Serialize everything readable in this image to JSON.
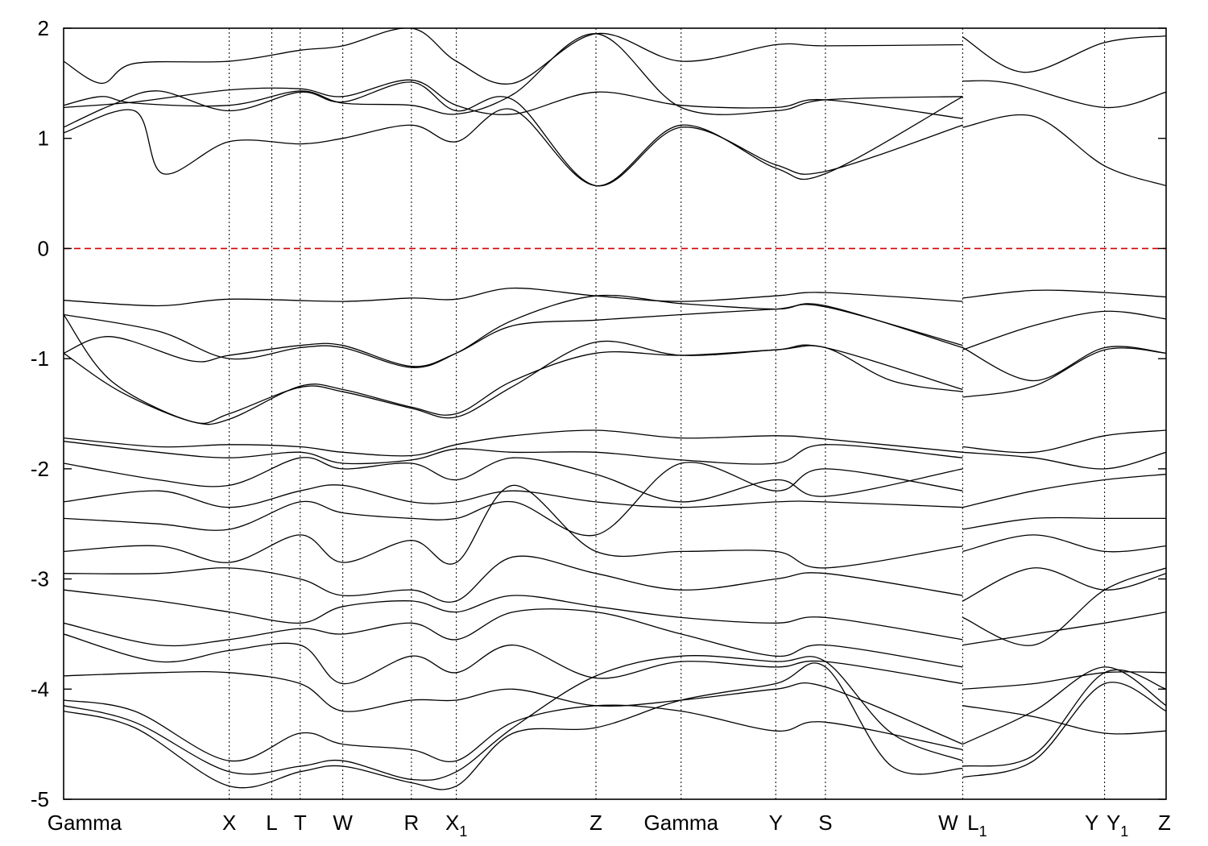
{
  "chart_data": {
    "type": "line",
    "title": "",
    "xlabel": "",
    "ylabel": "",
    "ylim": [
      -5,
      2
    ],
    "yticks": [
      "2",
      "1",
      "0",
      "-1",
      "-2",
      "-3",
      "-4",
      "-5"
    ],
    "ytick_values": [
      2,
      1,
      0,
      -1,
      -2,
      -3,
      -4,
      -5
    ],
    "xlim": [
      0,
      23.3
    ],
    "kpoints": [
      {
        "label": "Gamma",
        "sub": "",
        "x": 0.0
      },
      {
        "label": "X",
        "sub": "",
        "x": 3.5
      },
      {
        "label": "L",
        "sub": "",
        "x": 4.4
      },
      {
        "label": "T",
        "sub": "",
        "x": 5.0
      },
      {
        "label": "W",
        "sub": "",
        "x": 5.9
      },
      {
        "label": "R",
        "sub": "",
        "x": 7.35
      },
      {
        "label": "X",
        "sub": "1",
        "x": 8.3
      },
      {
        "label": "Z",
        "sub": "",
        "x": 11.25
      },
      {
        "label": "Gamma",
        "sub": "",
        "x": 13.05
      },
      {
        "label": "Y",
        "sub": "",
        "x": 15.05
      },
      {
        "label": "S",
        "sub": "",
        "x": 16.1
      },
      {
        "label": "W",
        "sub": "",
        "x": 19.0
      },
      {
        "label": "L",
        "sub": "1",
        "x": 19.0
      },
      {
        "label": "Y",
        "sub": "",
        "x": 22.0
      },
      {
        "label": "Y",
        "sub": "1",
        "x": 22.0
      },
      {
        "label": "Z",
        "sub": "",
        "x": 23.3
      }
    ],
    "fermi_level": 0,
    "grid": "vertical dotted lines at k-points",
    "series": [
      {
        "x": [
          0,
          1.5,
          2.1,
          3.5,
          5.0,
          5.9,
          7.35,
          8.3,
          9.5,
          11.25,
          13.05,
          15.05,
          16.1,
          19.0
        ],
        "values": [
          1.05,
          1.25,
          0.68,
          0.97,
          0.95,
          1.0,
          1.12,
          0.97,
          1.26,
          0.57,
          1.12,
          0.73,
          0.68,
          1.38
        ]
      },
      {
        "x": [
          0,
          1.0,
          2.0,
          3.5,
          5.0,
          5.9,
          7.35,
          8.3,
          9.5,
          11.25,
          13.05,
          15.05,
          16.1,
          19.0
        ],
        "values": [
          1.1,
          1.3,
          1.43,
          1.25,
          1.42,
          1.33,
          1.51,
          1.25,
          1.35,
          0.57,
          1.1,
          0.76,
          0.7,
          1.12
        ]
      },
      {
        "x": [
          0,
          1.5,
          3.5,
          5.0,
          5.9,
          7.35,
          8.3,
          9.5,
          11.25,
          13.05,
          15.05,
          16.1,
          19.0
        ],
        "values": [
          1.28,
          1.33,
          1.44,
          1.45,
          1.38,
          1.53,
          1.3,
          1.22,
          1.42,
          1.3,
          1.28,
          1.35,
          1.18
        ]
      },
      {
        "x": [
          0,
          0.8,
          1.5,
          3.5,
          5.0,
          5.9,
          7.35,
          8.3,
          9.5,
          11.25,
          13.05,
          15.05,
          16.1,
          19.0
        ],
        "values": [
          1.7,
          1.5,
          1.68,
          1.7,
          1.8,
          1.84,
          2.0,
          1.7,
          1.5,
          1.95,
          1.7,
          1.85,
          1.84,
          1.85
        ]
      },
      {
        "x": [
          0,
          0.8,
          1.5,
          3.5,
          5.0,
          5.9,
          7.35,
          8.3,
          9.5,
          11.25,
          13.05,
          15.05,
          16.1,
          19.0
        ],
        "values": [
          1.3,
          1.38,
          1.32,
          1.3,
          1.43,
          1.32,
          1.3,
          1.22,
          1.4,
          1.95,
          1.28,
          1.25,
          1.35,
          1.38
        ]
      },
      {
        "x": [
          19.0,
          20.5,
          22.0,
          23.3
        ],
        "values": [
          1.1,
          1.2,
          0.75,
          0.57
        ]
      },
      {
        "x": [
          19.0,
          20.0,
          22.0,
          23.3
        ],
        "values": [
          1.52,
          1.5,
          1.28,
          1.42
        ]
      },
      {
        "x": [
          19.0,
          20.3,
          22.0,
          23.3
        ],
        "values": [
          1.92,
          1.6,
          1.87,
          1.93
        ]
      },
      {
        "x": [
          0,
          2.0,
          3.5,
          5.9,
          7.35,
          8.3,
          9.5,
          11.25,
          13.05,
          15.05,
          16.1,
          19.0
        ],
        "values": [
          -0.47,
          -0.52,
          -0.46,
          -0.48,
          -0.45,
          -0.46,
          -0.36,
          -0.43,
          -0.48,
          -0.43,
          -0.4,
          -0.48
        ]
      },
      {
        "x": [
          0,
          2.0,
          3.5,
          5.0,
          5.9,
          7.35,
          8.3,
          9.5,
          11.25,
          13.05,
          15.05,
          16.1,
          19.0
        ],
        "values": [
          -0.6,
          -0.75,
          -1.0,
          -0.9,
          -0.9,
          -1.08,
          -0.95,
          -0.65,
          -0.43,
          -0.5,
          -0.55,
          -0.52,
          -0.9
        ]
      },
      {
        "x": [
          0,
          1.0,
          2.7,
          3.5,
          5.0,
          5.9,
          7.35,
          8.3,
          9.5,
          11.25,
          13.05,
          15.05,
          16.1,
          19.0
        ],
        "values": [
          -0.95,
          -0.8,
          -1.02,
          -0.97,
          -0.88,
          -0.88,
          -1.07,
          -0.95,
          -0.7,
          -0.65,
          -0.6,
          -0.55,
          -0.53,
          -0.88
        ]
      },
      {
        "x": [
          0,
          1.2,
          2.7,
          3.5,
          5.0,
          5.9,
          7.35,
          8.3,
          9.5,
          11.25,
          13.05,
          15.05,
          16.1,
          19.0
        ],
        "values": [
          -0.95,
          -1.3,
          -1.57,
          -1.55,
          -1.25,
          -1.28,
          -1.44,
          -1.5,
          -1.2,
          -0.95,
          -0.97,
          -0.92,
          -0.9,
          -1.28
        ]
      },
      {
        "x": [
          0,
          1.0,
          2.7,
          3.5,
          5.0,
          5.9,
          7.35,
          8.3,
          9.5,
          11.25,
          13.05,
          15.05,
          16.1,
          17.5,
          19.0
        ],
        "values": [
          -0.6,
          -1.2,
          -1.57,
          -1.5,
          -1.26,
          -1.3,
          -1.45,
          -1.53,
          -1.25,
          -0.85,
          -0.97,
          -0.92,
          -0.9,
          -1.2,
          -1.3
        ]
      },
      {
        "x": [
          19.0,
          20.5,
          22.0,
          23.3
        ],
        "values": [
          -0.45,
          -0.38,
          -0.4,
          -0.44
        ]
      },
      {
        "x": [
          19.0,
          20.5,
          22.0,
          23.3
        ],
        "values": [
          -0.92,
          -0.7,
          -0.57,
          -0.64
        ]
      },
      {
        "x": [
          19.0,
          20.5,
          22.0,
          23.3
        ],
        "values": [
          -0.9,
          -1.2,
          -0.9,
          -0.95
        ]
      },
      {
        "x": [
          19.0,
          20.5,
          22.0,
          23.3
        ],
        "values": [
          -1.35,
          -1.25,
          -0.92,
          -0.95
        ]
      },
      {
        "x": [
          0,
          2.0,
          3.5,
          5.0,
          5.9,
          7.35,
          8.3,
          9.5,
          11.25,
          13.05,
          15.05,
          16.1,
          19.0
        ],
        "values": [
          -1.72,
          -1.8,
          -1.78,
          -1.8,
          -1.85,
          -1.88,
          -1.78,
          -1.7,
          -1.65,
          -1.72,
          -1.7,
          -1.73,
          -1.85
        ]
      },
      {
        "x": [
          0,
          2.0,
          3.5,
          5.0,
          5.9,
          7.35,
          8.3,
          9.5,
          11.25,
          13.05,
          15.05,
          16.1,
          19.0
        ],
        "values": [
          -1.75,
          -1.85,
          -1.9,
          -1.85,
          -1.95,
          -1.92,
          -1.82,
          -1.85,
          -1.85,
          -1.92,
          -1.95,
          -1.78,
          -1.9
        ]
      },
      {
        "x": [
          0,
          2.0,
          3.5,
          5.0,
          5.9,
          7.35,
          8.3,
          9.5,
          11.25,
          13.05,
          15.05,
          16.1,
          19.0
        ],
        "values": [
          -1.95,
          -2.1,
          -2.15,
          -1.9,
          -2.0,
          -1.95,
          -2.1,
          -1.9,
          -2.05,
          -2.3,
          -2.1,
          -2.25,
          -2.0
        ]
      },
      {
        "x": [
          0,
          2.0,
          3.5,
          5.0,
          5.9,
          7.35,
          8.3,
          9.5,
          11.25,
          13.05,
          15.05,
          16.1,
          19.0
        ],
        "values": [
          -2.3,
          -2.2,
          -2.35,
          -2.2,
          -2.15,
          -2.3,
          -2.3,
          -2.2,
          -2.3,
          -2.35,
          -2.3,
          -2.3,
          -2.35
        ]
      },
      {
        "x": [
          0,
          2.0,
          3.5,
          5.0,
          5.9,
          7.35,
          8.3,
          9.5,
          11.25,
          13.05,
          15.05,
          16.1,
          19.0
        ],
        "values": [
          -2.45,
          -2.5,
          -2.55,
          -2.3,
          -2.4,
          -2.45,
          -2.45,
          -2.3,
          -2.6,
          -1.95,
          -2.2,
          -2.0,
          -2.2
        ]
      },
      {
        "x": [
          0,
          2.0,
          3.5,
          5.0,
          5.9,
          7.35,
          8.3,
          9.5,
          11.25,
          13.05,
          15.05,
          16.1,
          19.0
        ],
        "values": [
          -2.75,
          -2.7,
          -2.85,
          -2.6,
          -2.85,
          -2.65,
          -2.85,
          -2.15,
          -2.75,
          -2.75,
          -2.75,
          -2.9,
          -2.7
        ]
      },
      {
        "x": [
          0,
          2.0,
          3.5,
          5.0,
          5.9,
          7.35,
          8.3,
          9.5,
          11.25,
          13.05,
          15.05,
          16.1,
          19.0
        ],
        "values": [
          -2.95,
          -2.95,
          -2.9,
          -3.0,
          -3.15,
          -3.1,
          -3.2,
          -2.8,
          -2.95,
          -3.1,
          -3.0,
          -2.95,
          -3.15
        ]
      },
      {
        "x": [
          0,
          2.0,
          3.5,
          5.0,
          5.9,
          7.35,
          8.3,
          9.5,
          11.25,
          13.05,
          15.05,
          16.1,
          19.0
        ],
        "values": [
          -3.1,
          -3.2,
          -3.3,
          -3.4,
          -3.25,
          -3.2,
          -3.3,
          -3.15,
          -3.25,
          -3.35,
          -3.4,
          -3.35,
          -3.55
        ]
      },
      {
        "x": [
          0,
          2.0,
          3.5,
          5.0,
          5.9,
          7.35,
          8.3,
          9.5,
          11.25,
          13.05,
          15.05,
          16.1,
          19.0
        ],
        "values": [
          -3.4,
          -3.6,
          -3.55,
          -3.45,
          -3.5,
          -3.4,
          -3.55,
          -3.3,
          -3.3,
          -3.5,
          -3.7,
          -3.6,
          -3.8
        ]
      },
      {
        "x": [
          0,
          2.0,
          3.5,
          5.0,
          5.9,
          7.35,
          8.3,
          9.5,
          11.25,
          13.05,
          15.05,
          16.1,
          19.0
        ],
        "values": [
          -3.5,
          -3.75,
          -3.65,
          -3.6,
          -3.95,
          -3.7,
          -3.85,
          -3.6,
          -3.9,
          -3.75,
          -3.8,
          -3.75,
          -3.95
        ]
      },
      {
        "x": [
          0,
          2.0,
          3.5,
          5.0,
          5.9,
          7.35,
          8.3,
          9.5,
          11.25,
          13.05,
          15.05,
          16.1,
          19.0
        ],
        "values": [
          -3.88,
          -3.85,
          -3.85,
          -3.95,
          -4.2,
          -4.1,
          -4.1,
          -4.0,
          -4.15,
          -4.1,
          -4.0,
          -3.98,
          -4.5
        ]
      },
      {
        "x": [
          0,
          1.5,
          3.5,
          5.0,
          5.9,
          7.35,
          8.3,
          9.5,
          11.25,
          13.05,
          15.05,
          16.1,
          19.0
        ],
        "values": [
          -4.1,
          -4.2,
          -4.65,
          -4.4,
          -4.5,
          -4.55,
          -4.65,
          -4.3,
          -4.15,
          -4.2,
          -4.38,
          -4.3,
          -4.55
        ]
      },
      {
        "x": [
          0,
          1.5,
          3.5,
          5.0,
          5.9,
          7.35,
          8.3,
          9.5,
          11.25,
          13.05,
          15.05,
          16.1,
          17.5,
          19.0
        ],
        "values": [
          -4.15,
          -4.3,
          -4.75,
          -4.7,
          -4.65,
          -4.82,
          -4.75,
          -4.35,
          -3.88,
          -3.7,
          -3.75,
          -3.75,
          -4.4,
          -4.65
        ]
      },
      {
        "x": [
          0,
          1.5,
          3.5,
          5.0,
          5.9,
          7.35,
          8.3,
          9.5,
          11.25,
          13.05,
          15.05,
          16.1,
          17.5,
          19.0
        ],
        "values": [
          -4.2,
          -4.35,
          -4.88,
          -4.75,
          -4.7,
          -4.85,
          -4.88,
          -4.4,
          -4.35,
          -4.1,
          -3.95,
          -3.8,
          -4.7,
          -4.72
        ]
      },
      {
        "x": [
          19.0,
          20.5,
          22.0,
          23.3
        ],
        "values": [
          -1.8,
          -1.85,
          -1.7,
          -1.65
        ]
      },
      {
        "x": [
          19.0,
          20.5,
          22.0,
          23.3
        ],
        "values": [
          -1.85,
          -1.9,
          -2.0,
          -1.85
        ]
      },
      {
        "x": [
          19.0,
          20.5,
          22.0,
          23.3
        ],
        "values": [
          -2.35,
          -2.2,
          -2.1,
          -2.05
        ]
      },
      {
        "x": [
          19.0,
          20.5,
          22.0,
          23.3
        ],
        "values": [
          -2.55,
          -2.45,
          -2.45,
          -2.45
        ]
      },
      {
        "x": [
          19.0,
          20.5,
          22.0,
          23.3
        ],
        "values": [
          -2.75,
          -2.6,
          -2.75,
          -2.7
        ]
      },
      {
        "x": [
          19.0,
          20.5,
          22.0,
          23.3
        ],
        "values": [
          -3.2,
          -2.9,
          -3.1,
          -2.95
        ]
      },
      {
        "x": [
          19.0,
          20.5,
          22.0,
          23.3
        ],
        "values": [
          -3.35,
          -3.6,
          -3.1,
          -2.9
        ]
      },
      {
        "x": [
          19.0,
          20.5,
          22.0,
          23.3
        ],
        "values": [
          -3.6,
          -3.5,
          -3.4,
          -3.3
        ]
      },
      {
        "x": [
          19.0,
          20.5,
          22.0,
          23.3
        ],
        "values": [
          -4.0,
          -3.95,
          -3.85,
          -3.85
        ]
      },
      {
        "x": [
          19.0,
          20.5,
          22.0,
          23.3
        ],
        "values": [
          -4.5,
          -4.2,
          -3.8,
          -4.15
        ]
      },
      {
        "x": [
          19.0,
          20.5,
          22.0,
          23.3
        ],
        "values": [
          -4.7,
          -4.6,
          -3.85,
          -4.0
        ]
      },
      {
        "x": [
          19.0,
          20.5,
          22.0,
          23.3
        ],
        "values": [
          -4.8,
          -4.65,
          -3.95,
          -4.2
        ]
      },
      {
        "x": [
          19.0,
          20.5,
          22.0,
          23.3
        ],
        "values": [
          -4.15,
          -4.25,
          -4.4,
          -4.38
        ]
      }
    ]
  }
}
